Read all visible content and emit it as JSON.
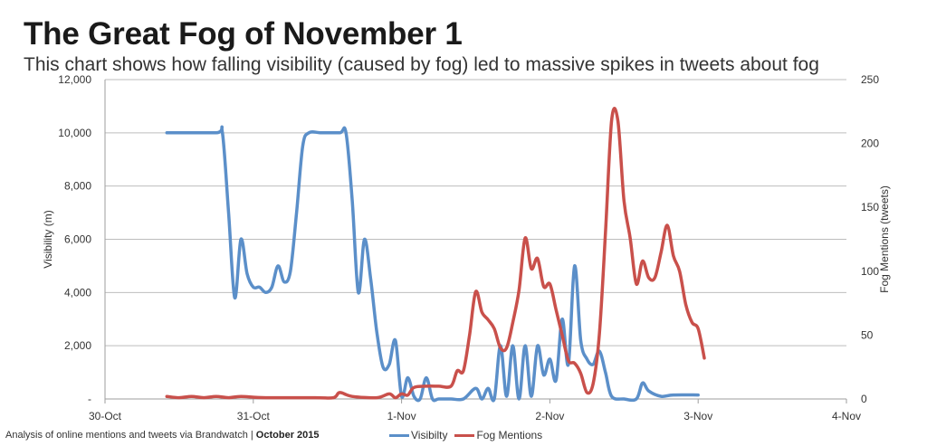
{
  "title": "The Great Fog of November 1",
  "subtitle": "This chart shows how falling visibility (caused by fog) led to massive spikes in tweets about fog",
  "footer": {
    "source_text": "Analysis of online mentions and tweets via Brandwatch | ",
    "date_text": "October 2015"
  },
  "colors": {
    "visibility": "#5b8fc9",
    "mentions": "#c9504b",
    "grid": "#bdbdbd"
  },
  "chart_data": {
    "type": "line",
    "title": "The Great Fog of November 1",
    "subtitle": "This chart shows how falling visibility (caused by fog) led to massive spikes in tweets about fog",
    "xlabel": "",
    "ylabel": "Visibility (m)",
    "y2label": "Fog Mentions (tweets)",
    "xlim": [
      "30-Oct",
      "4-Nov"
    ],
    "x_ticks": [
      "30-Oct",
      "31-Oct",
      "1-Nov",
      "2-Nov",
      "3-Nov",
      "4-Nov"
    ],
    "ylim": [
      0,
      12000
    ],
    "y_ticks": [
      "-",
      "2,000",
      "4,000",
      "6,000",
      "8,000",
      "10,000",
      "12,000"
    ],
    "y2lim": [
      0,
      250
    ],
    "y2_ticks": [
      "0",
      "50",
      "100",
      "150",
      "200",
      "250"
    ],
    "grid": true,
    "legend_position": "bottom",
    "series": [
      {
        "name": "Visibilty",
        "axis": "left",
        "points": [
          [
            "30-Oct 10:00",
            10000
          ],
          [
            "30-Oct 18:00",
            10000
          ],
          [
            "30-Oct 19:00",
            10000
          ],
          [
            "30-Oct 20:00",
            7000
          ],
          [
            "30-Oct 21:00",
            3800
          ],
          [
            "30-Oct 22:00",
            6000
          ],
          [
            "30-Oct 23:00",
            4700
          ],
          [
            "31-Oct 00:00",
            4200
          ],
          [
            "31-Oct 01:00",
            4200
          ],
          [
            "31-Oct 02:00",
            4000
          ],
          [
            "31-Oct 03:00",
            4200
          ],
          [
            "31-Oct 04:00",
            5000
          ],
          [
            "31-Oct 05:00",
            4400
          ],
          [
            "31-Oct 06:00",
            4800
          ],
          [
            "31-Oct 07:00",
            7000
          ],
          [
            "31-Oct 08:00",
            9500
          ],
          [
            "31-Oct 09:00",
            10000
          ],
          [
            "31-Oct 11:00",
            10000
          ],
          [
            "31-Oct 14:00",
            10000
          ],
          [
            "31-Oct 15:00",
            10000
          ],
          [
            "31-Oct 16:00",
            7500
          ],
          [
            "31-Oct 17:00",
            4000
          ],
          [
            "31-Oct 18:00",
            6000
          ],
          [
            "31-Oct 19:00",
            4500
          ],
          [
            "31-Oct 20:00",
            2500
          ],
          [
            "31-Oct 21:00",
            1200
          ],
          [
            "31-Oct 22:00",
            1300
          ],
          [
            "31-Oct 23:00",
            2200
          ],
          [
            "1-Nov 00:00",
            100
          ],
          [
            "1-Nov 01:00",
            800
          ],
          [
            "1-Nov 02:00",
            100
          ],
          [
            "1-Nov 03:00",
            0
          ],
          [
            "1-Nov 04:00",
            800
          ],
          [
            "1-Nov 05:00",
            0
          ],
          [
            "1-Nov 06:00",
            0
          ],
          [
            "1-Nov 08:00",
            0
          ],
          [
            "1-Nov 10:00",
            0
          ],
          [
            "1-Nov 12:00",
            400
          ],
          [
            "1-Nov 13:00",
            0
          ],
          [
            "1-Nov 14:00",
            400
          ],
          [
            "1-Nov 15:00",
            0
          ],
          [
            "1-Nov 16:00",
            2000
          ],
          [
            "1-Nov 17:00",
            100
          ],
          [
            "1-Nov 18:00",
            2000
          ],
          [
            "1-Nov 19:00",
            0
          ],
          [
            "1-Nov 20:00",
            2000
          ],
          [
            "1-Nov 21:00",
            100
          ],
          [
            "1-Nov 22:00",
            2000
          ],
          [
            "1-Nov 23:00",
            900
          ],
          [
            "2-Nov 00:00",
            1500
          ],
          [
            "2-Nov 01:00",
            700
          ],
          [
            "2-Nov 02:00",
            3000
          ],
          [
            "2-Nov 03:00",
            1300
          ],
          [
            "2-Nov 04:00",
            5000
          ],
          [
            "2-Nov 05:00",
            2200
          ],
          [
            "2-Nov 06:00",
            1500
          ],
          [
            "2-Nov 07:00",
            1300
          ],
          [
            "2-Nov 08:00",
            1800
          ],
          [
            "2-Nov 09:00",
            1000
          ],
          [
            "2-Nov 10:00",
            100
          ],
          [
            "2-Nov 12:00",
            0
          ],
          [
            "2-Nov 14:00",
            0
          ],
          [
            "2-Nov 15:00",
            600
          ],
          [
            "2-Nov 16:00",
            300
          ],
          [
            "2-Nov 18:00",
            100
          ],
          [
            "2-Nov 20:00",
            150
          ],
          [
            "3-Nov 00:00",
            150
          ]
        ]
      },
      {
        "name": "Fog Mentions",
        "axis": "right",
        "points": [
          [
            "30-Oct 10:00",
            2
          ],
          [
            "30-Oct 12:00",
            1
          ],
          [
            "30-Oct 14:00",
            2
          ],
          [
            "30-Oct 16:00",
            1
          ],
          [
            "30-Oct 18:00",
            2
          ],
          [
            "30-Oct 20:00",
            1
          ],
          [
            "30-Oct 22:00",
            2
          ],
          [
            "31-Oct 02:00",
            1
          ],
          [
            "31-Oct 10:00",
            1
          ],
          [
            "31-Oct 13:00",
            1
          ],
          [
            "31-Oct 14:00",
            5
          ],
          [
            "31-Oct 16:00",
            2
          ],
          [
            "31-Oct 20:00",
            1
          ],
          [
            "31-Oct 22:00",
            4
          ],
          [
            "31-Oct 23:00",
            1
          ],
          [
            "1-Nov 00:00",
            4
          ],
          [
            "1-Nov 01:00",
            3
          ],
          [
            "1-Nov 02:00",
            9
          ],
          [
            "1-Nov 04:00",
            10
          ],
          [
            "1-Nov 06:00",
            10
          ],
          [
            "1-Nov 08:00",
            10
          ],
          [
            "1-Nov 09:00",
            22
          ],
          [
            "1-Nov 10:00",
            22
          ],
          [
            "1-Nov 11:00",
            50
          ],
          [
            "1-Nov 12:00",
            84
          ],
          [
            "1-Nov 13:00",
            68
          ],
          [
            "1-Nov 14:00",
            62
          ],
          [
            "1-Nov 15:00",
            55
          ],
          [
            "1-Nov 16:00",
            40
          ],
          [
            "1-Nov 17:00",
            40
          ],
          [
            "1-Nov 18:00",
            60
          ],
          [
            "1-Nov 19:00",
            85
          ],
          [
            "1-Nov 20:00",
            126
          ],
          [
            "1-Nov 21:00",
            102
          ],
          [
            "1-Nov 22:00",
            110
          ],
          [
            "1-Nov 23:00",
            88
          ],
          [
            "2-Nov 00:00",
            90
          ],
          [
            "2-Nov 01:00",
            70
          ],
          [
            "2-Nov 02:00",
            50
          ],
          [
            "2-Nov 03:00",
            30
          ],
          [
            "2-Nov 04:00",
            28
          ],
          [
            "2-Nov 05:00",
            20
          ],
          [
            "2-Nov 06:00",
            5
          ],
          [
            "2-Nov 07:00",
            12
          ],
          [
            "2-Nov 08:00",
            50
          ],
          [
            "2-Nov 09:00",
            130
          ],
          [
            "2-Nov 10:00",
            218
          ],
          [
            "2-Nov 11:00",
            218
          ],
          [
            "2-Nov 12:00",
            155
          ],
          [
            "2-Nov 13:00",
            126
          ],
          [
            "2-Nov 14:00",
            90
          ],
          [
            "2-Nov 15:00",
            108
          ],
          [
            "2-Nov 16:00",
            95
          ],
          [
            "2-Nov 17:00",
            95
          ],
          [
            "2-Nov 18:00",
            115
          ],
          [
            "2-Nov 19:00",
            136
          ],
          [
            "2-Nov 20:00",
            112
          ],
          [
            "2-Nov 21:00",
            100
          ],
          [
            "2-Nov 22:00",
            74
          ],
          [
            "2-Nov 23:00",
            60
          ],
          [
            "3-Nov 00:00",
            55
          ],
          [
            "3-Nov 01:00",
            32
          ]
        ]
      }
    ]
  }
}
